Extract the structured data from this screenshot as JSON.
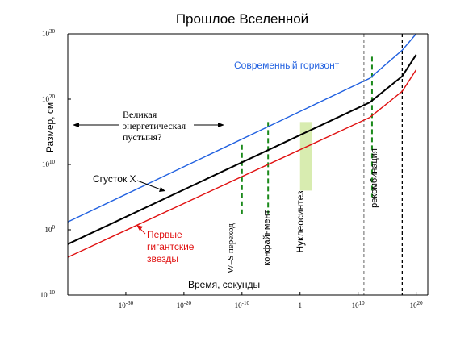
{
  "chart_data": {
    "type": "line",
    "title": "Прошлое Вселенной",
    "xlabel": "Время, секунды",
    "ylabel": "Размер, см",
    "x_scale": "log",
    "y_scale": "log",
    "xlim_exp": [
      -40,
      22
    ],
    "ylim_exp": [
      -10,
      30
    ],
    "x_ticks": [
      {
        "base": "10",
        "exp": "-30",
        "value_exp": -30
      },
      {
        "base": "10",
        "exp": "-20",
        "value_exp": -20
      },
      {
        "base": "10",
        "exp": "-10",
        "value_exp": -10
      },
      {
        "base": "1",
        "exp": "",
        "value_exp": 0
      },
      {
        "base": "10",
        "exp": "10",
        "value_exp": 10
      },
      {
        "base": "10",
        "exp": "20",
        "value_exp": 20
      }
    ],
    "y_ticks": [
      {
        "base": "10",
        "exp": "30",
        "value_exp": 30
      },
      {
        "base": "10",
        "exp": "20",
        "value_exp": 20
      },
      {
        "base": "10",
        "exp": "10",
        "value_exp": 10
      },
      {
        "base": "10",
        "exp": "0",
        "value_exp": 0
      },
      {
        "base": "10",
        "exp": "-10",
        "value_exp": -10
      }
    ],
    "series": [
      {
        "name": "Современный горизонт",
        "color": "#2060e0",
        "points_exp": [
          [
            -40,
            1.2
          ],
          [
            12,
            23.2
          ],
          [
            17.6,
            27.5
          ],
          [
            20,
            31
          ]
        ]
      },
      {
        "name": "Сгусток X",
        "color": "#000000",
        "points_exp": [
          [
            -40,
            -2.2
          ],
          [
            12,
            19.5
          ],
          [
            17.6,
            23.5
          ],
          [
            20,
            26.8
          ]
        ]
      },
      {
        "name": "Первые гигантские звезды",
        "color": "#e01010",
        "points_exp": [
          [
            -40,
            -4.2
          ],
          [
            12,
            17.2
          ],
          [
            17.6,
            21.2
          ],
          [
            20,
            24.5
          ]
        ]
      }
    ],
    "green_markers": [
      {
        "x_exp": -10,
        "y_range_exp": [
          2,
          13
        ],
        "label": "W–S переход"
      },
      {
        "x_exp": -5.5,
        "y_range_exp": [
          2.5,
          16.5
        ],
        "label": "конфайнмент"
      },
      {
        "x_exp": 12.4,
        "y_range_exp": [
          5,
          26.5
        ],
        "label": "рекомбинация"
      }
    ],
    "band": {
      "x_range_exp": [
        0,
        2
      ],
      "y_range_exp": [
        6,
        16.5
      ],
      "color": "#d8ecb0",
      "label": "Нуклеосинтез"
    },
    "vlines": [
      {
        "x_exp": 11,
        "color": "#888888"
      },
      {
        "x_exp": 17.6,
        "color": "#000000"
      }
    ],
    "annotations": {
      "desert": [
        "Великая",
        "энергетическая",
        "пустыня?"
      ],
      "clump": "Сгусток X",
      "stars": [
        "Первые",
        "гигантские",
        "звезды"
      ],
      "horizon": "Современный горизонт"
    }
  }
}
